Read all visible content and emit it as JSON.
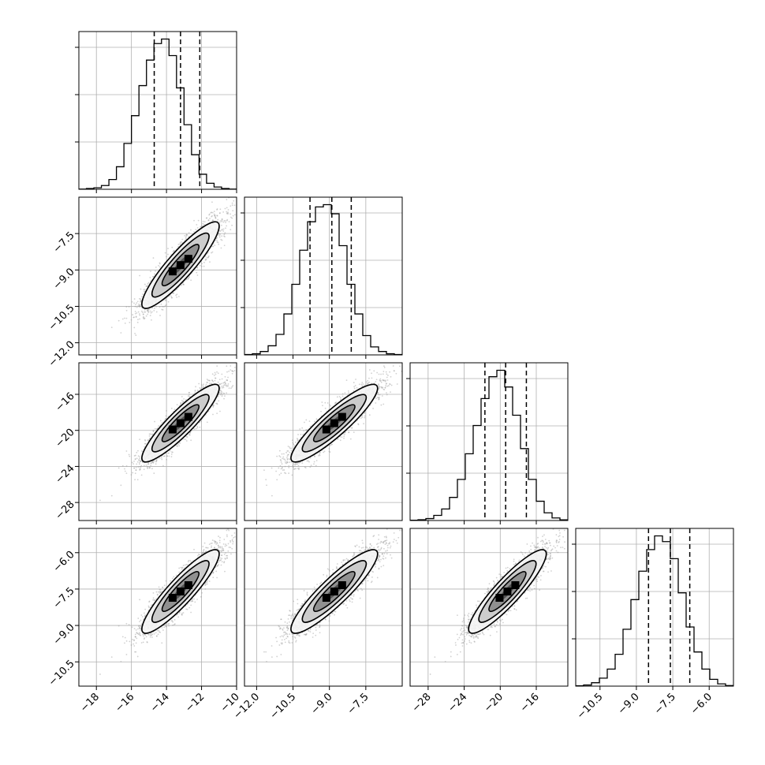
{
  "chart_data": {
    "type": "corner",
    "title": "",
    "grid": true,
    "quantile_lines": "dashed vertical lines at 16th, 50th and 84th percentiles",
    "colors": {
      "hist": "#000000",
      "contour": "#000000",
      "grid": "#b0b0b0",
      "points": "#9a9a9a"
    },
    "parameters": [
      {
        "label": "",
        "range": [
          -19.0,
          -10.0
        ],
        "ticks": [
          -18,
          -16,
          -14,
          -12,
          -10
        ],
        "tick_labels": [
          "−18",
          "−16",
          "−14",
          "−12",
          "−10"
        ],
        "mean": -13.2,
        "std": 1.05,
        "quantiles": [
          -14.7,
          -13.2,
          -12.1
        ],
        "hist_counts": [
          0.2,
          1,
          2,
          5,
          13,
          30,
          61,
          98,
          138,
          172,
          194,
          200,
          178,
          135,
          86,
          46,
          20,
          8,
          3,
          1,
          0.2
        ]
      },
      {
        "label": "",
        "range": [
          -12.5,
          -6.0
        ],
        "ticks": [
          -12.0,
          -10.5,
          -9.0,
          -7.5
        ],
        "tick_labels": [
          "−12.0",
          "−10.5",
          "−9.0",
          "−7.5"
        ],
        "mean": -8.8,
        "std": 0.85,
        "quantiles": [
          -9.8,
          -8.9,
          -8.1
        ],
        "hist_counts": [
          0.3,
          1,
          3,
          8,
          18,
          36,
          62,
          92,
          117,
          130,
          132,
          124,
          96,
          62,
          36,
          17,
          7,
          3,
          1,
          0.3
        ]
      },
      {
        "label": "",
        "range": [
          -30.0,
          -12.5
        ],
        "ticks": [
          -28,
          -24,
          -20,
          -16
        ],
        "tick_labels": [
          "−28",
          "−24",
          "−20",
          "−16"
        ],
        "mean": -19.2,
        "std": 2.05,
        "quantiles": [
          -21.7,
          -19.4,
          -17.1
        ],
        "hist_counts": [
          0.2,
          0.6,
          1.5,
          4,
          9,
          18,
          32,
          52,
          74,
          95,
          112,
          117,
          104,
          82,
          56,
          32,
          15,
          6,
          2,
          0.5
        ]
      },
      {
        "label": "",
        "range": [
          -11.5,
          -5.0
        ],
        "ticks": [
          -10.5,
          -9.0,
          -7.5,
          -6.0
        ],
        "tick_labels": [
          "−10.5",
          "−9.0",
          "−7.5",
          "−6.0"
        ],
        "mean": -7.6,
        "std": 0.82,
        "quantiles": [
          -8.5,
          -7.6,
          -6.8
        ],
        "hist_counts": [
          0.3,
          1,
          3,
          7,
          15,
          28,
          50,
          76,
          101,
          120,
          132,
          127,
          112,
          82,
          52,
          30,
          15,
          6,
          2,
          0.5
        ]
      }
    ],
    "correlation": 0.9
  }
}
